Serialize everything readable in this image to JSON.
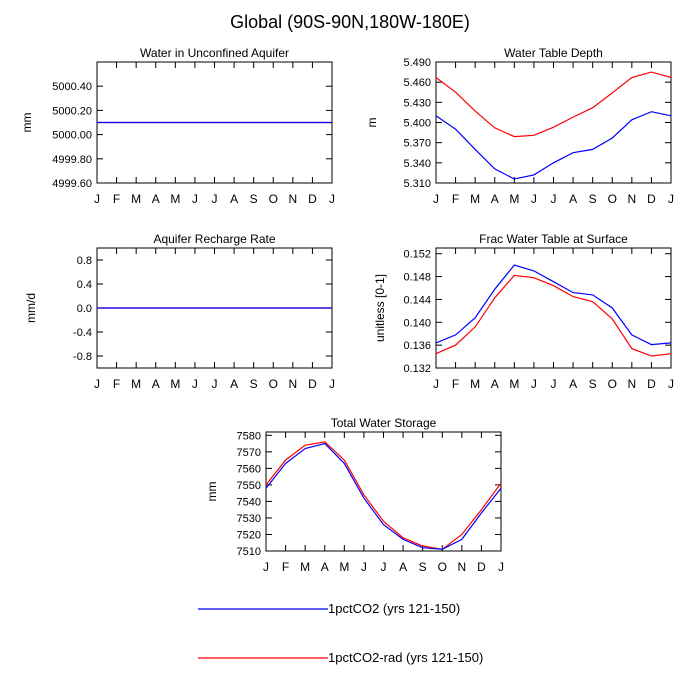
{
  "page_title": "Global (90S-90N,180W-180E)",
  "colors": {
    "series1": "#0000ff",
    "series2": "#ff0000",
    "axis": "#000000"
  },
  "legend": [
    {
      "label": "1pctCO2 (yrs 121-150)",
      "color": "#0000ff"
    },
    {
      "label": "1pctCO2-rad (yrs 121-150)",
      "color": "#ff0000"
    }
  ],
  "chart_data": [
    {
      "type": "line",
      "title": "Water in Unconfined Aquifer",
      "xlabel": "",
      "ylabel": "mm",
      "categories": [
        "J",
        "F",
        "M",
        "A",
        "M",
        "J",
        "J",
        "A",
        "S",
        "O",
        "N",
        "D",
        "J"
      ],
      "ylim": [
        4999.6,
        5000.6
      ],
      "yticks": [
        4999.6,
        4999.8,
        5000.0,
        5000.2,
        5000.4
      ],
      "ytick_labels": [
        "4999.60",
        "4999.80",
        "5000.00",
        "5000.20",
        "5000.40"
      ],
      "series": [
        {
          "values": [
            5000.1,
            5000.1,
            5000.1,
            5000.1,
            5000.1,
            5000.1,
            5000.1,
            5000.1,
            5000.1,
            5000.1,
            5000.1,
            5000.1,
            5000.1
          ]
        },
        {
          "values": [
            5000.1,
            5000.1,
            5000.1,
            5000.1,
            5000.1,
            5000.1,
            5000.1,
            5000.1,
            5000.1,
            5000.1,
            5000.1,
            5000.1,
            5000.1
          ]
        }
      ],
      "grid": false
    },
    {
      "type": "line",
      "title": "Water Table Depth",
      "xlabel": "",
      "ylabel": "m",
      "categories": [
        "J",
        "F",
        "M",
        "A",
        "M",
        "J",
        "J",
        "A",
        "S",
        "O",
        "N",
        "D",
        "J"
      ],
      "ylim": [
        5.31,
        5.49
      ],
      "yticks": [
        5.31,
        5.34,
        5.37,
        5.4,
        5.43,
        5.46,
        5.49
      ],
      "ytick_labels": [
        "5.310",
        "5.340",
        "5.370",
        "5.400",
        "5.430",
        "5.460",
        "5.490"
      ],
      "series": [
        {
          "values": [
            5.41,
            5.39,
            5.36,
            5.331,
            5.316,
            5.322,
            5.34,
            5.355,
            5.36,
            5.377,
            5.404,
            5.416,
            5.41
          ]
        },
        {
          "values": [
            5.467,
            5.445,
            5.417,
            5.392,
            5.379,
            5.381,
            5.393,
            5.408,
            5.422,
            5.444,
            5.467,
            5.475,
            5.467
          ]
        }
      ],
      "grid": false
    },
    {
      "type": "line",
      "title": "Aquifer Recharge Rate",
      "xlabel": "",
      "ylabel": "mm/d",
      "categories": [
        "J",
        "F",
        "M",
        "A",
        "M",
        "J",
        "J",
        "A",
        "S",
        "O",
        "N",
        "D",
        "J"
      ],
      "ylim": [
        -1.0,
        1.0
      ],
      "yticks": [
        -0.8,
        -0.4,
        0.0,
        0.4,
        0.8
      ],
      "ytick_labels": [
        "-0.8",
        "-0.4",
        "0.0",
        "0.4",
        "0.8"
      ],
      "series": [
        {
          "values": [
            0,
            0,
            0,
            0,
            0,
            0,
            0,
            0,
            0,
            0,
            0,
            0,
            0
          ]
        },
        {
          "values": [
            0,
            0,
            0,
            0,
            0,
            0,
            0,
            0,
            0,
            0,
            0,
            0,
            0
          ]
        }
      ],
      "grid": false
    },
    {
      "type": "line",
      "title": "Frac Water Table at Surface",
      "xlabel": "",
      "ylabel": "unitless [0-1]",
      "categories": [
        "J",
        "F",
        "M",
        "A",
        "M",
        "J",
        "J",
        "A",
        "S",
        "O",
        "N",
        "D",
        "J"
      ],
      "ylim": [
        0.132,
        0.153
      ],
      "yticks": [
        0.132,
        0.136,
        0.14,
        0.144,
        0.148,
        0.152
      ],
      "ytick_labels": [
        "0.132",
        "0.136",
        "0.140",
        "0.144",
        "0.148",
        "0.152"
      ],
      "series": [
        {
          "values": [
            0.1364,
            0.1378,
            0.1408,
            0.1458,
            0.15,
            0.149,
            0.1471,
            0.1452,
            0.1448,
            0.1425,
            0.1378,
            0.1361,
            0.1364
          ]
        },
        {
          "values": [
            0.1345,
            0.136,
            0.1392,
            0.1443,
            0.1482,
            0.1478,
            0.1464,
            0.1445,
            0.1436,
            0.1406,
            0.1354,
            0.1341,
            0.1345
          ]
        }
      ],
      "grid": false
    },
    {
      "type": "line",
      "title": "Total Water Storage",
      "xlabel": "",
      "ylabel": "mm",
      "categories": [
        "J",
        "F",
        "M",
        "A",
        "M",
        "J",
        "J",
        "A",
        "S",
        "O",
        "N",
        "D",
        "J"
      ],
      "ylim": [
        7510,
        7582
      ],
      "yticks": [
        7510,
        7520,
        7530,
        7540,
        7550,
        7560,
        7570,
        7580
      ],
      "ytick_labels": [
        "7510",
        "7520",
        "7530",
        "7540",
        "7550",
        "7560",
        "7570",
        "7580"
      ],
      "series": [
        {
          "values": [
            7548,
            7563,
            7572,
            7575,
            7563,
            7542,
            7526,
            7517,
            7512,
            7511,
            7517,
            7533,
            7548
          ]
        },
        {
          "values": [
            7550,
            7565,
            7574,
            7576,
            7565,
            7544,
            7528,
            7518,
            7513,
            7511,
            7520,
            7535,
            7551
          ]
        }
      ],
      "grid": false
    }
  ]
}
